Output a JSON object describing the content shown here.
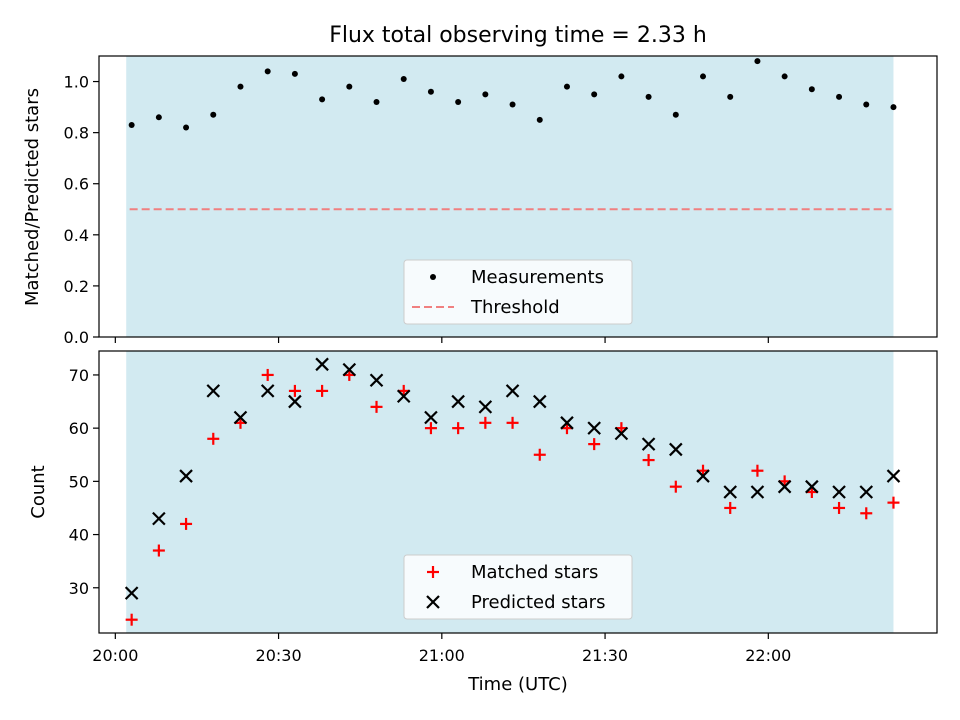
{
  "chart_data": [
    {
      "type": "scatter",
      "title": "Flux total observing time = 2.33 h",
      "xlabel": "",
      "ylabel": "Matched/Predicted stars",
      "ylim": [
        0.0,
        1.1
      ],
      "yticks": [
        "0.0",
        "0.2",
        "0.4",
        "0.6",
        "0.8",
        "1.0"
      ],
      "xlim": [
        "19:57",
        "22:31"
      ],
      "shaded_span": [
        "20:02",
        "22:23"
      ],
      "x": [
        "20:03",
        "20:08",
        "20:13",
        "20:18",
        "20:23",
        "20:28",
        "20:33",
        "20:38",
        "20:43",
        "20:48",
        "20:53",
        "20:58",
        "21:03",
        "21:08",
        "21:13",
        "21:18",
        "21:23",
        "21:28",
        "21:33",
        "21:38",
        "21:43",
        "21:48",
        "21:53",
        "21:58",
        "22:03",
        "22:08",
        "22:13",
        "22:18",
        "22:23"
      ],
      "series": [
        {
          "name": "Measurements",
          "values": [
            0.83,
            0.86,
            0.82,
            0.87,
            0.98,
            1.04,
            1.03,
            0.93,
            0.98,
            0.92,
            1.01,
            0.96,
            0.92,
            0.95,
            0.91,
            0.85,
            0.98,
            0.95,
            1.02,
            0.94,
            0.87,
            1.02,
            0.94,
            1.08,
            1.02,
            0.97,
            0.94,
            0.91,
            0.9
          ],
          "marker": "dot",
          "color": "#000000"
        },
        {
          "name": "Threshold",
          "value": 0.5,
          "style": "dashed",
          "color": "#f08080"
        }
      ],
      "legend": "lower center",
      "shade_color": "#add8e6"
    },
    {
      "type": "scatter",
      "xlabel": "Time (UTC)",
      "ylabel": "Count",
      "ylim": [
        21.5,
        74.5
      ],
      "yticks": [
        "30",
        "40",
        "50",
        "60",
        "70"
      ],
      "xticks": [
        "20:00",
        "20:30",
        "21:00",
        "21:30",
        "22:00"
      ],
      "xlim": [
        "19:57",
        "22:31"
      ],
      "shaded_span": [
        "20:02",
        "22:23"
      ],
      "x": [
        "20:03",
        "20:08",
        "20:13",
        "20:18",
        "20:23",
        "20:28",
        "20:33",
        "20:38",
        "20:43",
        "20:48",
        "20:53",
        "20:58",
        "21:03",
        "21:08",
        "21:13",
        "21:18",
        "21:23",
        "21:28",
        "21:33",
        "21:38",
        "21:43",
        "21:48",
        "21:53",
        "21:58",
        "22:03",
        "22:08",
        "22:13",
        "22:18",
        "22:23"
      ],
      "series": [
        {
          "name": "Matched stars",
          "values": [
            24,
            37,
            42,
            58,
            61,
            70,
            67,
            67,
            70,
            64,
            67,
            60,
            60,
            61,
            61,
            55,
            60,
            57,
            60,
            54,
            49,
            52,
            45,
            52,
            50,
            48,
            45,
            44,
            46
          ],
          "marker": "+",
          "color": "#ff0000"
        },
        {
          "name": "Predicted stars",
          "values": [
            29,
            43,
            51,
            67,
            62,
            67,
            65,
            72,
            71,
            69,
            66,
            62,
            65,
            64,
            67,
            65,
            61,
            60,
            59,
            57,
            56,
            51,
            48,
            48,
            49,
            49,
            48,
            48,
            51
          ],
          "marker": "x",
          "color": "#000000"
        }
      ],
      "legend": "lower center",
      "shade_color": "#add8e6"
    }
  ]
}
